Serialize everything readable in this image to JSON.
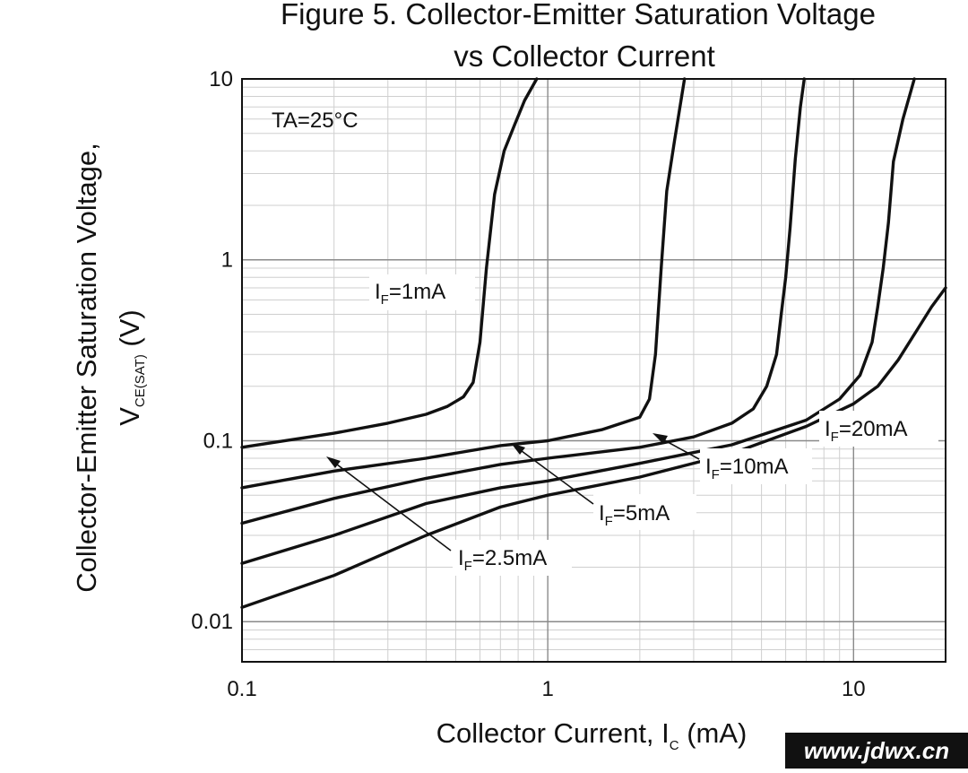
{
  "chart_data": {
    "type": "line",
    "title_lines": [
      "Figure 5. Collector-Emitter Saturation Voltage",
      "vs Collector Current"
    ],
    "xlabel": {
      "main": "Collector Current, I",
      "sub": "C",
      "suffix": " (mA)"
    },
    "ylabel": {
      "line1": "Collector-Emitter Saturation Voltage,",
      "main": "V",
      "sub": "CE(SAT)",
      "suffix": " (V)"
    },
    "xscale": "log",
    "yscale": "log",
    "xlim": [
      0.1,
      20
    ],
    "ylim": [
      0.006,
      10
    ],
    "x_ticks": [
      {
        "value": 0.1,
        "label": "0.1"
      },
      {
        "value": 1,
        "label": "1"
      },
      {
        "value": 10,
        "label": "10"
      }
    ],
    "y_ticks": [
      {
        "value": 0.01,
        "label": "0.01"
      },
      {
        "value": 0.1,
        "label": "0.1"
      },
      {
        "value": 1,
        "label": "1"
      },
      {
        "value": 10,
        "label": "10"
      }
    ],
    "grid": true,
    "condition": "TA=25°C",
    "series": [
      {
        "name": "IF=1mA",
        "label_main": "I",
        "label_sub": "F",
        "label_rest": "=1mA",
        "points": [
          [
            0.1,
            0.092
          ],
          [
            0.2,
            0.11
          ],
          [
            0.3,
            0.125
          ],
          [
            0.4,
            0.14
          ],
          [
            0.47,
            0.155
          ],
          [
            0.53,
            0.175
          ],
          [
            0.57,
            0.21
          ],
          [
            0.6,
            0.35
          ],
          [
            0.63,
            0.9
          ],
          [
            0.67,
            2.3
          ],
          [
            0.72,
            4
          ],
          [
            0.78,
            5.6
          ],
          [
            0.84,
            7.6
          ],
          [
            0.92,
            10
          ]
        ]
      },
      {
        "name": "IF=2.5mA",
        "label_main": "I",
        "label_sub": "F",
        "label_rest": "=2.5mA",
        "points": [
          [
            0.1,
            0.055
          ],
          [
            0.2,
            0.068
          ],
          [
            0.4,
            0.08
          ],
          [
            0.7,
            0.094
          ],
          [
            1,
            0.1
          ],
          [
            1.5,
            0.115
          ],
          [
            2,
            0.135
          ],
          [
            2.15,
            0.17
          ],
          [
            2.25,
            0.3
          ],
          [
            2.35,
            0.9
          ],
          [
            2.45,
            2.4
          ],
          [
            2.6,
            4.6
          ],
          [
            2.8,
            10
          ]
        ]
      },
      {
        "name": "IF=5mA",
        "label_main": "I",
        "label_sub": "F",
        "label_rest": "=5mA",
        "points": [
          [
            0.1,
            0.035
          ],
          [
            0.2,
            0.048
          ],
          [
            0.4,
            0.062
          ],
          [
            0.7,
            0.074
          ],
          [
            1,
            0.08
          ],
          [
            2,
            0.092
          ],
          [
            3,
            0.105
          ],
          [
            4,
            0.125
          ],
          [
            4.7,
            0.15
          ],
          [
            5.2,
            0.2
          ],
          [
            5.6,
            0.3
          ],
          [
            5.8,
            0.5
          ],
          [
            6,
            0.8
          ],
          [
            6.2,
            1.5
          ],
          [
            6.45,
            3.6
          ],
          [
            6.7,
            7
          ],
          [
            6.9,
            10
          ]
        ]
      },
      {
        "name": "IF=10mA",
        "label_main": "I",
        "label_sub": "F",
        "label_rest": "=10mA",
        "points": [
          [
            0.1,
            0.021
          ],
          [
            0.2,
            0.03
          ],
          [
            0.4,
            0.045
          ],
          [
            0.7,
            0.055
          ],
          [
            1,
            0.06
          ],
          [
            2,
            0.075
          ],
          [
            4,
            0.095
          ],
          [
            7,
            0.13
          ],
          [
            9,
            0.17
          ],
          [
            10.5,
            0.23
          ],
          [
            11.5,
            0.35
          ],
          [
            12,
            0.55
          ],
          [
            12.5,
            0.9
          ],
          [
            13,
            1.6
          ],
          [
            13.5,
            3.5
          ],
          [
            14.5,
            6
          ],
          [
            15.8,
            10
          ]
        ]
      },
      {
        "name": "IF=20mA",
        "label_main": "I",
        "label_sub": "F",
        "label_rest": "=20mA",
        "points": [
          [
            0.1,
            0.012
          ],
          [
            0.2,
            0.018
          ],
          [
            0.4,
            0.03
          ],
          [
            0.7,
            0.043
          ],
          [
            1,
            0.05
          ],
          [
            2,
            0.063
          ],
          [
            4,
            0.085
          ],
          [
            7,
            0.12
          ],
          [
            10,
            0.16
          ],
          [
            12,
            0.2
          ],
          [
            14,
            0.28
          ],
          [
            16,
            0.4
          ],
          [
            18,
            0.55
          ],
          [
            20,
            0.7
          ]
        ]
      }
    ]
  },
  "watermark": "www.jdwx.cn"
}
